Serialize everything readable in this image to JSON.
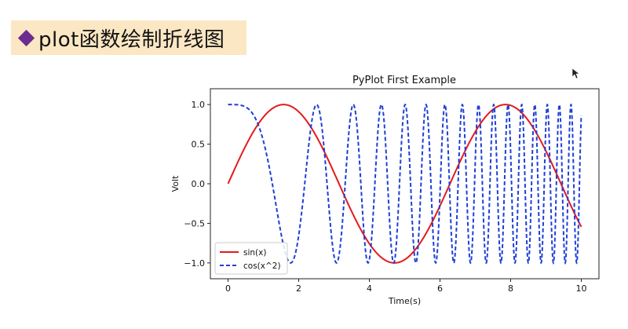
{
  "slide": {
    "title": "plot函数绘制折线图",
    "bullet_color": "#6b2d8f",
    "title_bg": "#fbe7c4"
  },
  "chart_data": {
    "type": "line",
    "title": "PyPlot First Example",
    "xlabel": "Time(s)",
    "ylabel": "Volt",
    "xlim": [
      -0.5,
      10.5
    ],
    "ylim": [
      -1.2,
      1.2
    ],
    "xticks": [
      0,
      2,
      4,
      6,
      8,
      10
    ],
    "xtick_labels": [
      "0",
      "2",
      "4",
      "6",
      "8",
      "10"
    ],
    "yticks": [
      -1.0,
      -0.5,
      0.0,
      0.5,
      1.0
    ],
    "ytick_labels": [
      "−1.0",
      "−0.5",
      "0.0",
      "0.5",
      "1.0"
    ],
    "grid": false,
    "legend_position": "lower-left",
    "series": [
      {
        "name": "sin(x)",
        "function": "sin(x)",
        "x_range": [
          0,
          10
        ],
        "color": "#e31a1c",
        "style": "solid"
      },
      {
        "name": "cos(x^2)",
        "function": "cos(x^2)",
        "x_range": [
          0,
          10
        ],
        "color": "#1f3fd6",
        "style": "dashed"
      }
    ]
  }
}
